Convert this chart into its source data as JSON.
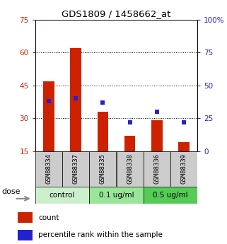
{
  "title": "GDS1809 / 1458662_at",
  "samples": [
    "GSM88334",
    "GSM88337",
    "GSM88335",
    "GSM88338",
    "GSM88336",
    "GSM88339"
  ],
  "counts": [
    47,
    62,
    33,
    22,
    29,
    19
  ],
  "percentiles": [
    38,
    40,
    37,
    22,
    30,
    22
  ],
  "groups": [
    {
      "label": "control",
      "color": "#ccf0cc",
      "start": 0,
      "end": 1
    },
    {
      "label": "0.1 ug/ml",
      "color": "#99e699",
      "start": 2,
      "end": 3
    },
    {
      "label": "0.5 ug/ml",
      "color": "#55cc55",
      "start": 4,
      "end": 5
    }
  ],
  "left_ylim": [
    15,
    75
  ],
  "right_ylim": [
    0,
    100
  ],
  "left_yticks": [
    15,
    30,
    45,
    60,
    75
  ],
  "right_yticks": [
    0,
    25,
    50,
    75,
    100
  ],
  "left_yticklabels": [
    "15",
    "30",
    "45",
    "60",
    "75"
  ],
  "right_yticklabels": [
    "0",
    "25",
    "50",
    "75",
    "100%"
  ],
  "dotted_lines": [
    30,
    45,
    60
  ],
  "bar_color": "#cc2200",
  "marker_color": "#2222cc",
  "label_bg": "#cccccc",
  "dose_label": "dose",
  "legend_count": "count",
  "legend_percentile": "percentile rank within the sample",
  "bar_width": 0.4,
  "marker_size": 4
}
